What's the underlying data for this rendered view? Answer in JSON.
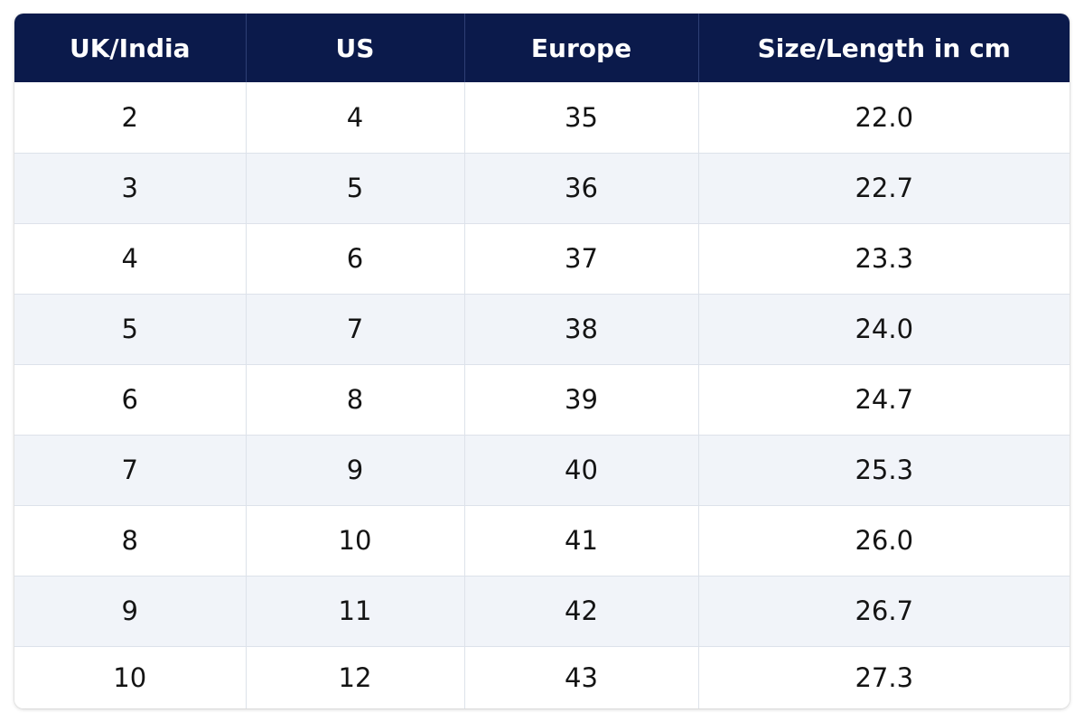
{
  "table": {
    "headers": [
      "UK/India",
      "US",
      "Europe",
      "Size/Length in cm"
    ],
    "rows": [
      [
        "2",
        "4",
        "35",
        "22.0"
      ],
      [
        "3",
        "5",
        "36",
        "22.7"
      ],
      [
        "4",
        "6",
        "37",
        "23.3"
      ],
      [
        "5",
        "7",
        "38",
        "24.0"
      ],
      [
        "6",
        "8",
        "39",
        "24.7"
      ],
      [
        "7",
        "9",
        "40",
        "25.3"
      ],
      [
        "8",
        "10",
        "41",
        "26.0"
      ],
      [
        "9",
        "11",
        "42",
        "26.7"
      ],
      [
        "10",
        "12",
        "43",
        "27.3"
      ]
    ]
  },
  "colors": {
    "header_background": "#0b1a4b",
    "header_text": "#ffffff",
    "row_stripe": "#f1f4f9",
    "cell_text": "#141414"
  }
}
